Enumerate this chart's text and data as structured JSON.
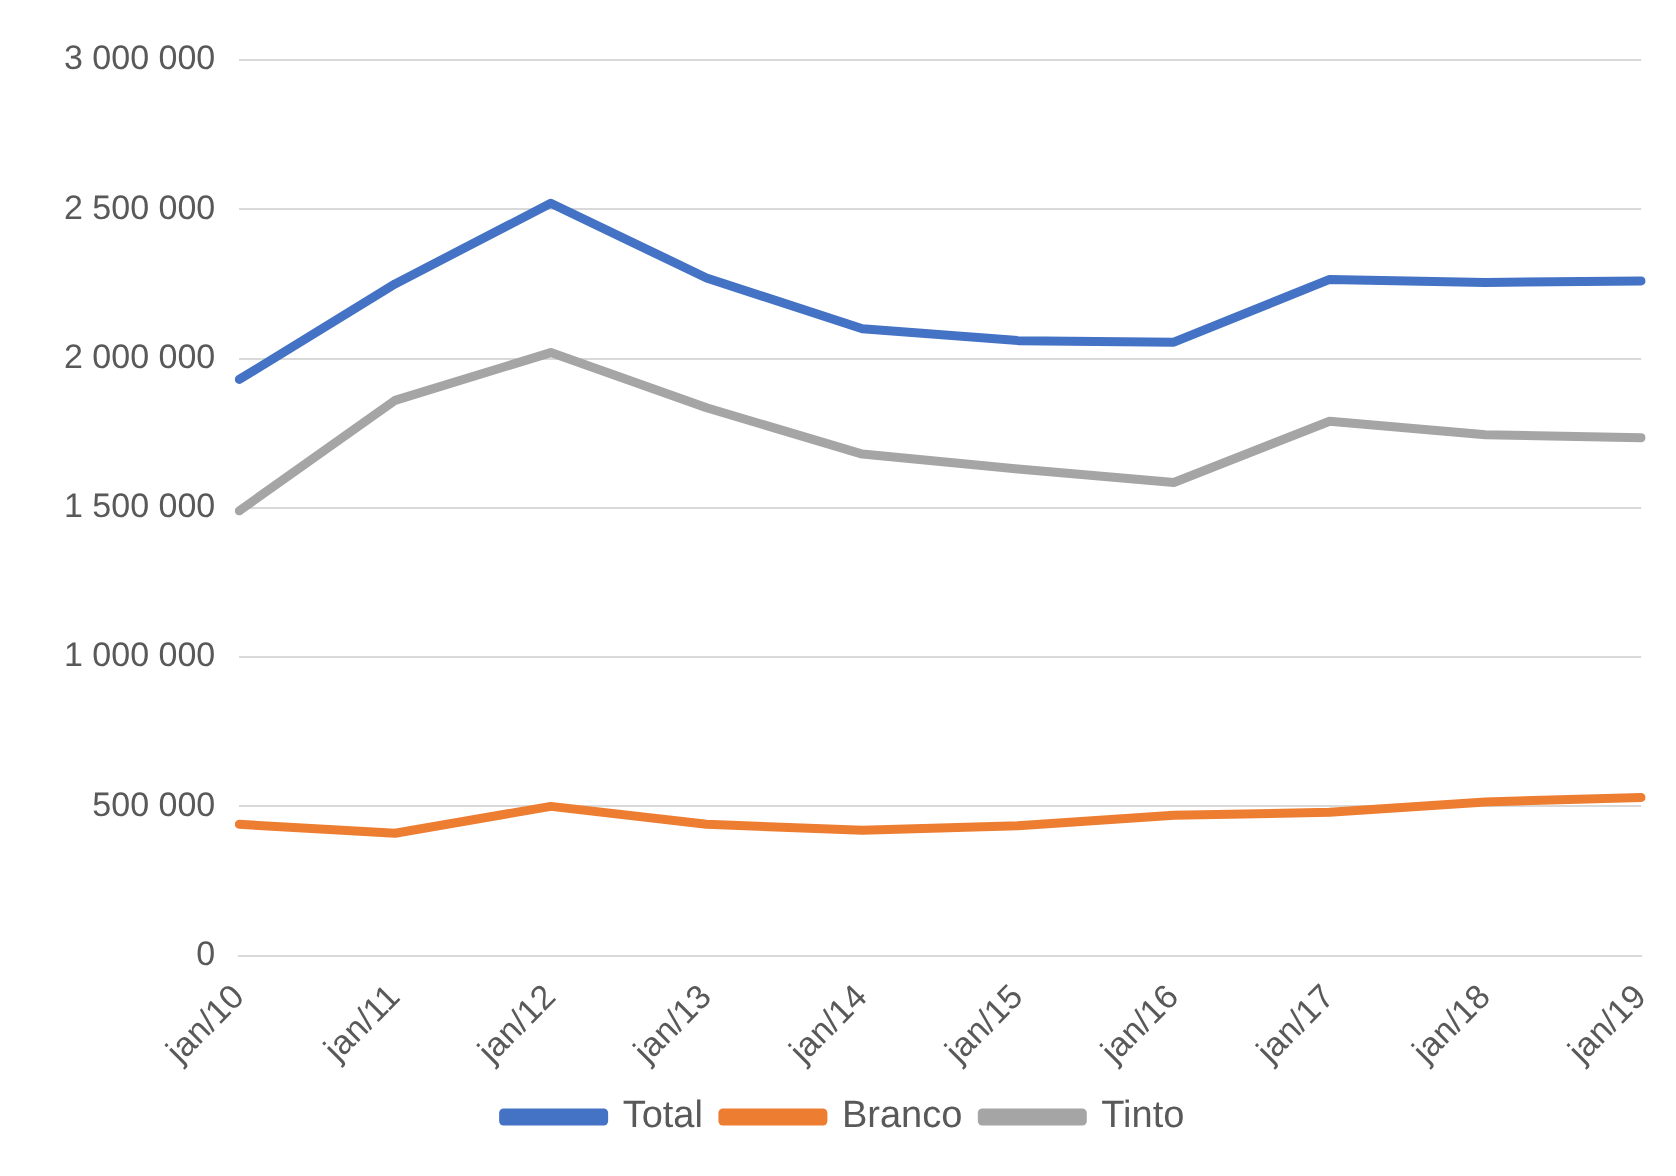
{
  "chart_data": {
    "type": "line",
    "categories": [
      "jan/10",
      "jan/11",
      "jan/12",
      "jan/13",
      "jan/14",
      "jan/15",
      "jan/16",
      "jan/17",
      "jan/18",
      "jan/19"
    ],
    "series": [
      {
        "name": "Total",
        "color": "#4472c4",
        "values": [
          1930000,
          2250000,
          2520000,
          2270000,
          2100000,
          2060000,
          2055000,
          2265000,
          2255000,
          2260000
        ]
      },
      {
        "name": "Branco",
        "color": "#ed7d31",
        "values": [
          440000,
          410000,
          500000,
          440000,
          420000,
          435000,
          470000,
          480000,
          515000,
          530000
        ]
      },
      {
        "name": "Tinto",
        "color": "#a5a5a5",
        "values": [
          1490000,
          1860000,
          2020000,
          1835000,
          1680000,
          1630000,
          1585000,
          1790000,
          1745000,
          1735000
        ]
      }
    ],
    "ylim": [
      0,
      3000000
    ],
    "yticks": [
      0,
      {
        "value": 500000,
        "label": "500 000"
      },
      {
        "value": 1000000,
        "label": "1 000 000"
      },
      {
        "value": 1500000,
        "label": "1 500 000"
      },
      {
        "value": 2000000,
        "label": "2 000 000"
      },
      {
        "value": 2500000,
        "label": "2 500 000"
      },
      {
        "value": 3000000,
        "label": "3 000 000"
      }
    ],
    "grid": "y",
    "legend": "bottom",
    "marker": "none",
    "line_style": "solid"
  }
}
